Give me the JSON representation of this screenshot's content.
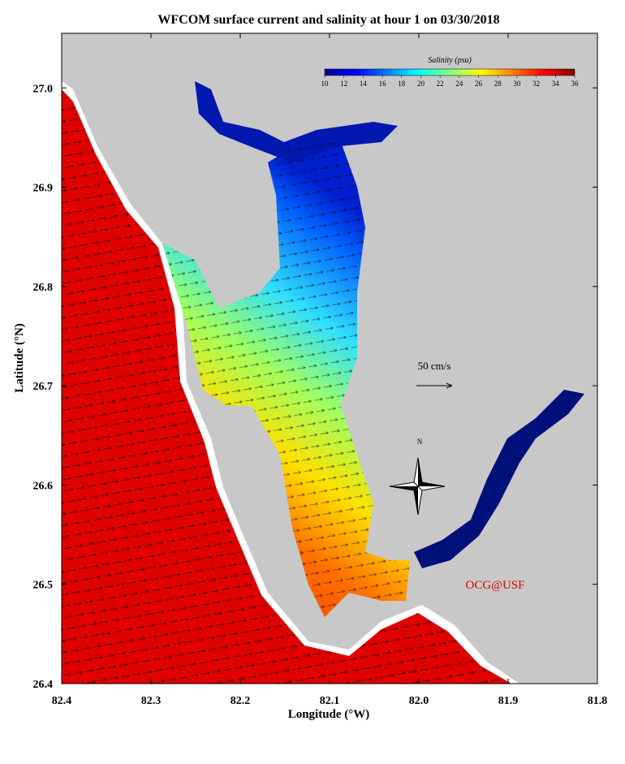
{
  "map": {
    "title": "WFCOM surface current and salinity at hour 1 on 03/30/2018",
    "xlabel": "Longitude (°W)",
    "ylabel": "Latitude (°N)",
    "xlim": [
      82.4,
      81.8
    ],
    "xticks": [
      82.4,
      82.3,
      82.2,
      82.1,
      {
        "value": 82,
        "label": "82.0"
      },
      81.9,
      81.8
    ],
    "ylim": [
      26.4,
      27.055
    ],
    "yticks": [
      26.4,
      26.5,
      26.6,
      26.7,
      26.8,
      26.9,
      {
        "value": 27,
        "label": "27.0"
      }
    ],
    "colorbar": {
      "title": "Salinity (psu)",
      "lim": [
        10,
        36
      ],
      "ticks": [
        10,
        12,
        14,
        16,
        18,
        20,
        22,
        24,
        26,
        28,
        30,
        32,
        34,
        36
      ]
    },
    "scale_label": "50 cm/s",
    "compass_label": "N",
    "credit": "OCG@USF"
  }
}
